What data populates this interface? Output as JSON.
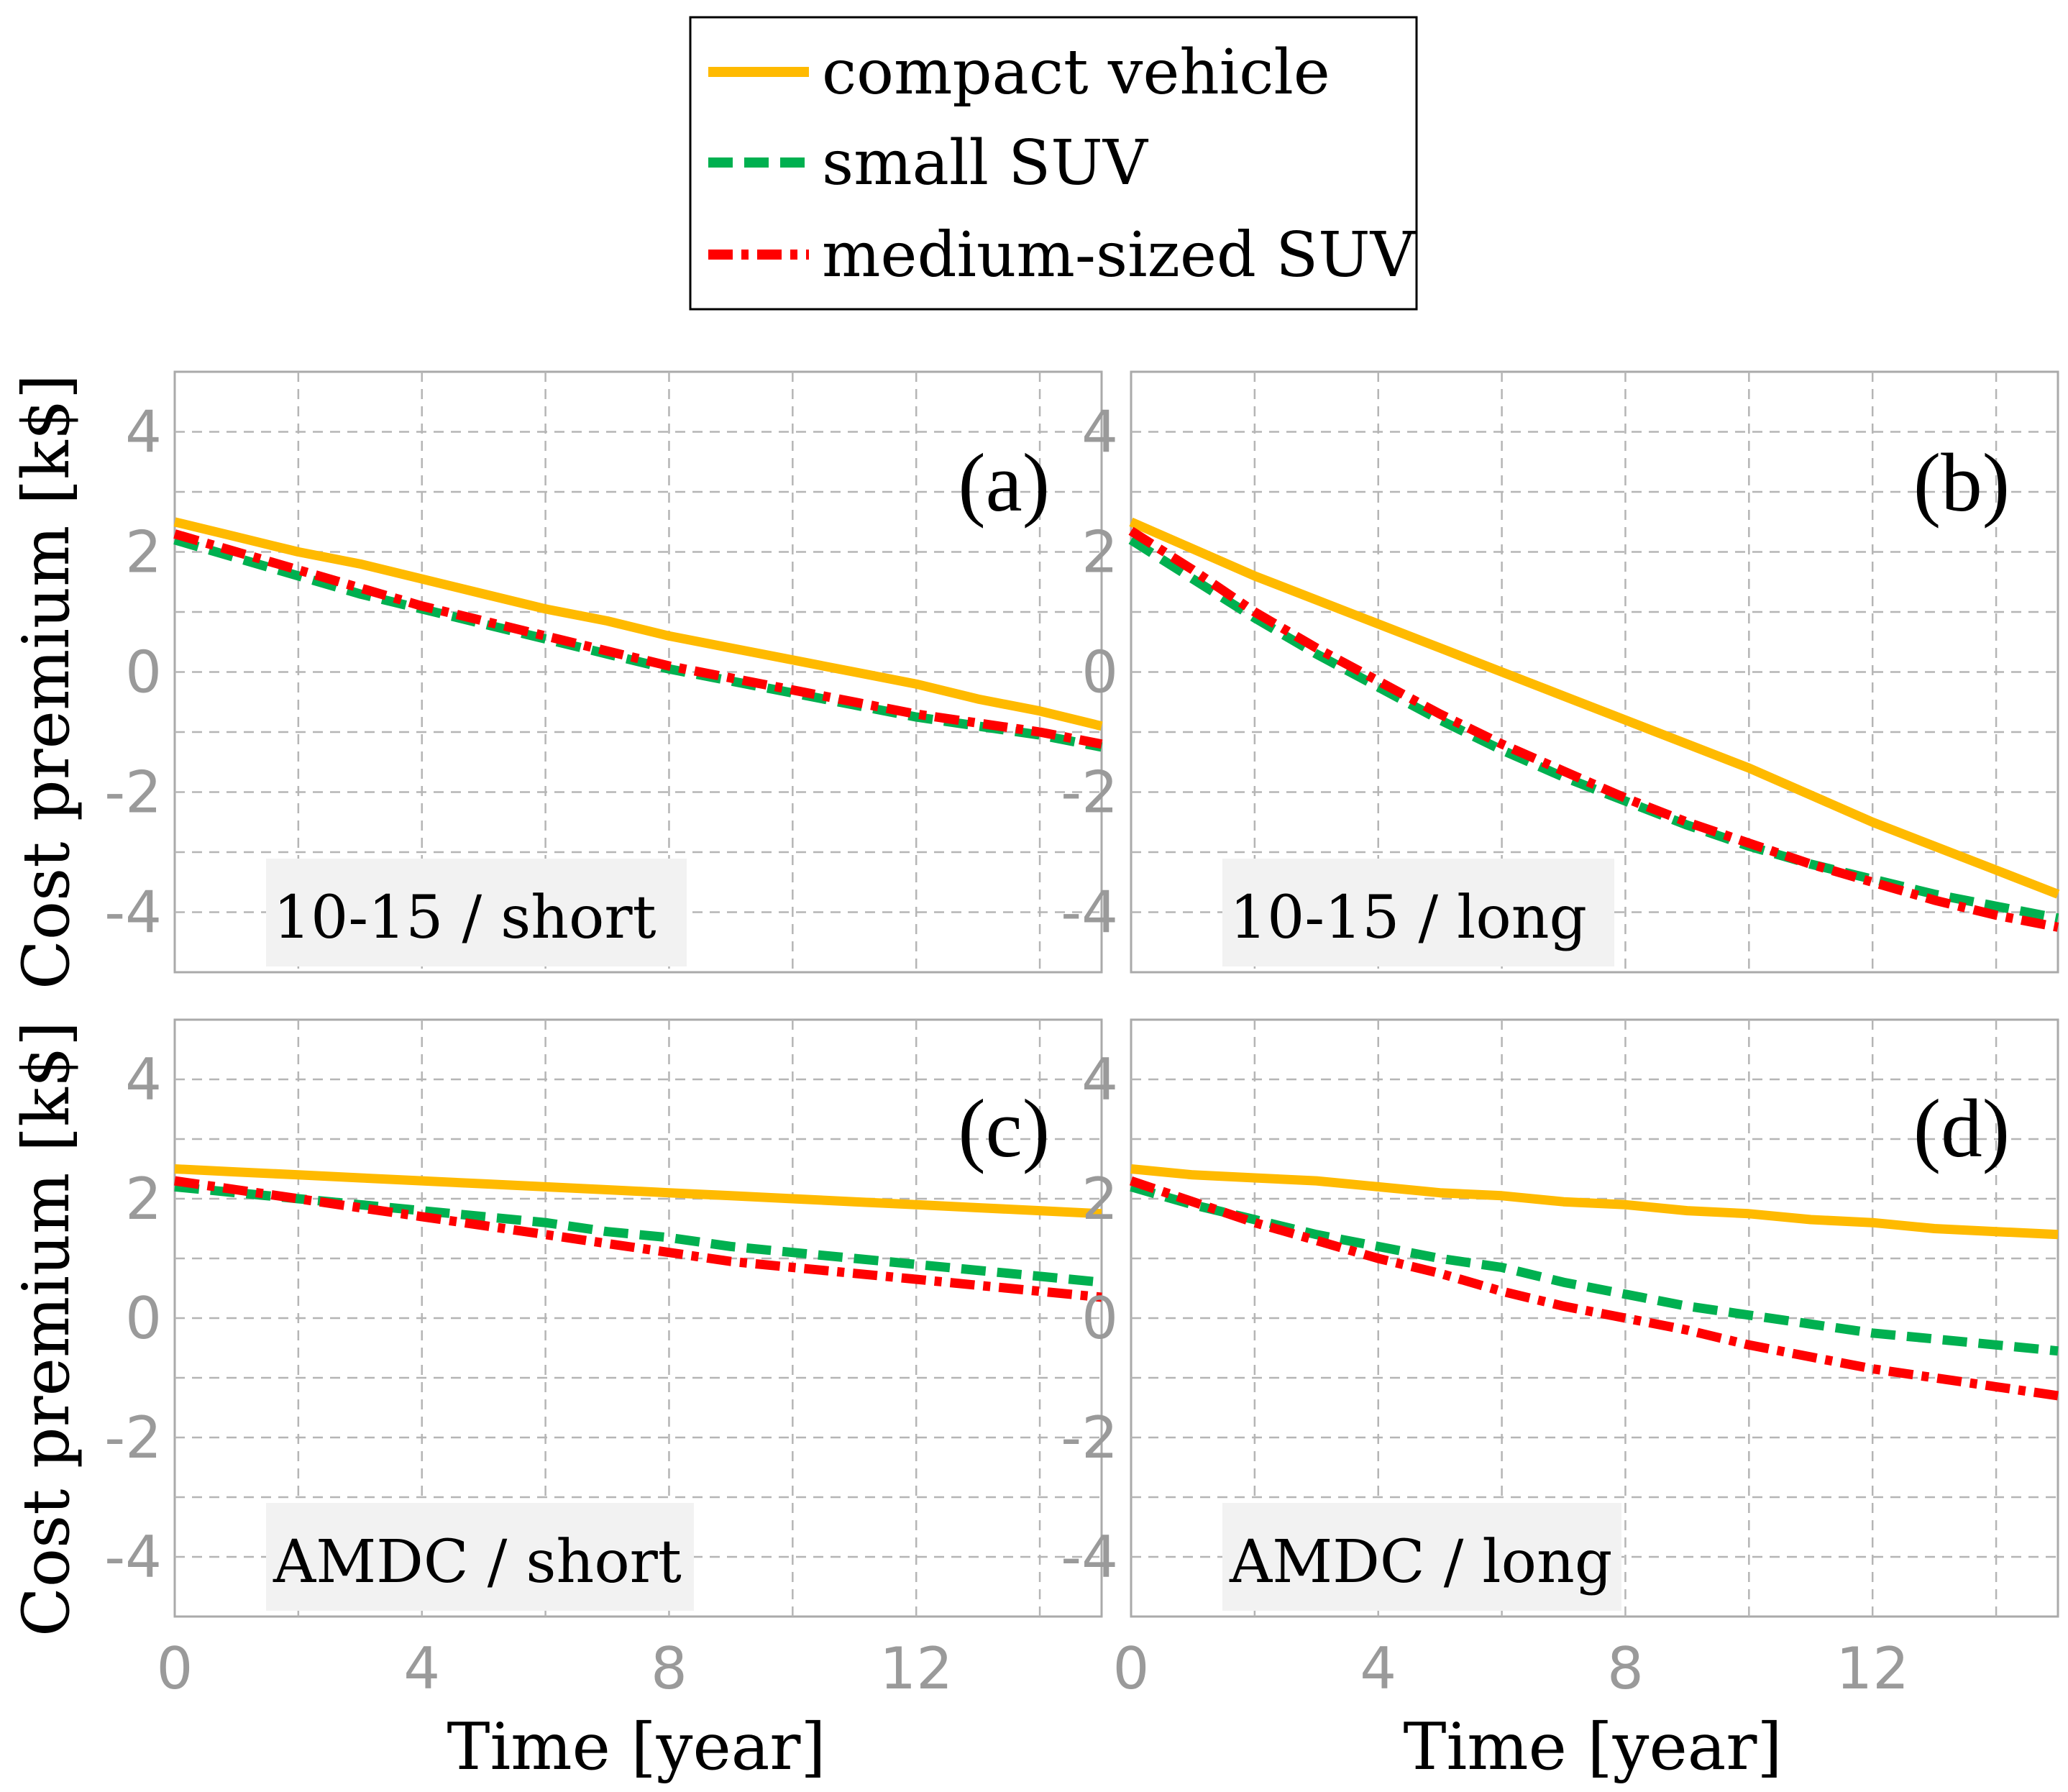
{
  "legend": [
    {
      "name": "compact vehicle",
      "color": "#FFBA00",
      "dash": "solid"
    },
    {
      "name": "small SUV",
      "color": "#00B050",
      "dash": "dashed"
    },
    {
      "name": "medium-sized SUV",
      "color": "#FF0000",
      "dash": "dashdot"
    }
  ],
  "ylabel": "Cost premium [k$]",
  "xlabel": "Time [year]",
  "chart_data": [
    {
      "type": "line",
      "panel": "(a)",
      "condition": "10-15 / short",
      "x": [
        0,
        1,
        2,
        3,
        4,
        5,
        6,
        7,
        8,
        9,
        10,
        11,
        12,
        13,
        14,
        15
      ],
      "xlim": [
        0,
        15
      ],
      "ylim": [
        -5,
        5
      ],
      "xticks": [
        "0",
        "4",
        "8",
        "12"
      ],
      "yticks": [
        "4",
        "2",
        "0",
        "-2",
        "-4"
      ],
      "series": [
        {
          "name": "compact vehicle",
          "values": [
            2.5,
            2.25,
            2.0,
            1.8,
            1.55,
            1.3,
            1.05,
            0.85,
            0.6,
            0.4,
            0.2,
            0.0,
            -0.2,
            -0.45,
            -0.65,
            -0.9
          ]
        },
        {
          "name": "small SUV",
          "values": [
            2.2,
            1.9,
            1.6,
            1.3,
            1.05,
            0.8,
            0.55,
            0.3,
            0.05,
            -0.15,
            -0.35,
            -0.55,
            -0.75,
            -0.9,
            -1.05,
            -1.25
          ]
        },
        {
          "name": "medium-sized SUV",
          "values": [
            2.3,
            2.0,
            1.7,
            1.4,
            1.1,
            0.85,
            0.6,
            0.35,
            0.1,
            -0.1,
            -0.3,
            -0.5,
            -0.7,
            -0.85,
            -1.0,
            -1.2
          ]
        }
      ]
    },
    {
      "type": "line",
      "panel": "(b)",
      "condition": "10-15 / long",
      "x": [
        0,
        1,
        2,
        3,
        4,
        5,
        6,
        7,
        8,
        9,
        10,
        11,
        12,
        13,
        14,
        15
      ],
      "xlim": [
        0,
        15
      ],
      "ylim": [
        -5,
        5
      ],
      "xticks": [
        "0",
        "4",
        "8",
        "12"
      ],
      "yticks": [
        "4",
        "2",
        "0",
        "-2",
        "-4"
      ],
      "series": [
        {
          "name": "compact vehicle",
          "values": [
            2.5,
            2.05,
            1.6,
            1.2,
            0.8,
            0.4,
            0.0,
            -0.4,
            -0.8,
            -1.2,
            -1.6,
            -2.05,
            -2.5,
            -2.9,
            -3.3,
            -3.7
          ]
        },
        {
          "name": "small SUV",
          "values": [
            2.2,
            1.55,
            0.9,
            0.3,
            -0.25,
            -0.8,
            -1.3,
            -1.75,
            -2.15,
            -2.55,
            -2.9,
            -3.2,
            -3.45,
            -3.7,
            -3.9,
            -4.1
          ]
        },
        {
          "name": "medium-sized SUV",
          "values": [
            2.35,
            1.7,
            1.0,
            0.4,
            -0.15,
            -0.7,
            -1.2,
            -1.65,
            -2.1,
            -2.5,
            -2.85,
            -3.2,
            -3.5,
            -3.8,
            -4.05,
            -4.25
          ]
        }
      ]
    },
    {
      "type": "line",
      "panel": "(c)",
      "condition": "AMDC / short",
      "x": [
        0,
        1,
        2,
        3,
        4,
        5,
        6,
        7,
        8,
        9,
        10,
        11,
        12,
        13,
        14,
        15
      ],
      "xlim": [
        0,
        15
      ],
      "ylim": [
        -5,
        5
      ],
      "xticks": [
        "0",
        "4",
        "8",
        "12"
      ],
      "yticks": [
        "4",
        "2",
        "0",
        "-2",
        "-4"
      ],
      "series": [
        {
          "name": "compact vehicle",
          "values": [
            2.5,
            2.45,
            2.4,
            2.35,
            2.3,
            2.25,
            2.2,
            2.15,
            2.1,
            2.05,
            2.0,
            1.95,
            1.9,
            1.85,
            1.8,
            1.75
          ]
        },
        {
          "name": "small SUV",
          "values": [
            2.2,
            2.1,
            2.0,
            1.9,
            1.8,
            1.7,
            1.6,
            1.45,
            1.35,
            1.2,
            1.1,
            1.0,
            0.9,
            0.8,
            0.7,
            0.6
          ]
        },
        {
          "name": "medium-sized SUV",
          "values": [
            2.3,
            2.15,
            2.0,
            1.85,
            1.7,
            1.55,
            1.4,
            1.25,
            1.1,
            0.95,
            0.85,
            0.75,
            0.65,
            0.55,
            0.45,
            0.35
          ]
        }
      ]
    },
    {
      "type": "line",
      "panel": "(d)",
      "condition": "AMDC / long",
      "x": [
        0,
        1,
        2,
        3,
        4,
        5,
        6,
        7,
        8,
        9,
        10,
        11,
        12,
        13,
        14,
        15
      ],
      "xlim": [
        0,
        15
      ],
      "ylim": [
        -5,
        5
      ],
      "xticks": [
        "0",
        "4",
        "8",
        "12"
      ],
      "yticks": [
        "4",
        "2",
        "0",
        "-2",
        "-4"
      ],
      "series": [
        {
          "name": "compact vehicle",
          "values": [
            2.5,
            2.4,
            2.35,
            2.3,
            2.2,
            2.1,
            2.05,
            1.95,
            1.9,
            1.8,
            1.75,
            1.65,
            1.6,
            1.5,
            1.45,
            1.4
          ]
        },
        {
          "name": "small SUV",
          "values": [
            2.2,
            1.9,
            1.65,
            1.4,
            1.2,
            1.0,
            0.85,
            0.6,
            0.4,
            0.2,
            0.05,
            -0.1,
            -0.25,
            -0.35,
            -0.45,
            -0.55
          ]
        },
        {
          "name": "medium-sized SUV",
          "values": [
            2.3,
            1.95,
            1.6,
            1.3,
            1.0,
            0.75,
            0.45,
            0.2,
            0.0,
            -0.2,
            -0.45,
            -0.65,
            -0.85,
            -1.0,
            -1.15,
            -1.3
          ]
        }
      ]
    }
  ]
}
